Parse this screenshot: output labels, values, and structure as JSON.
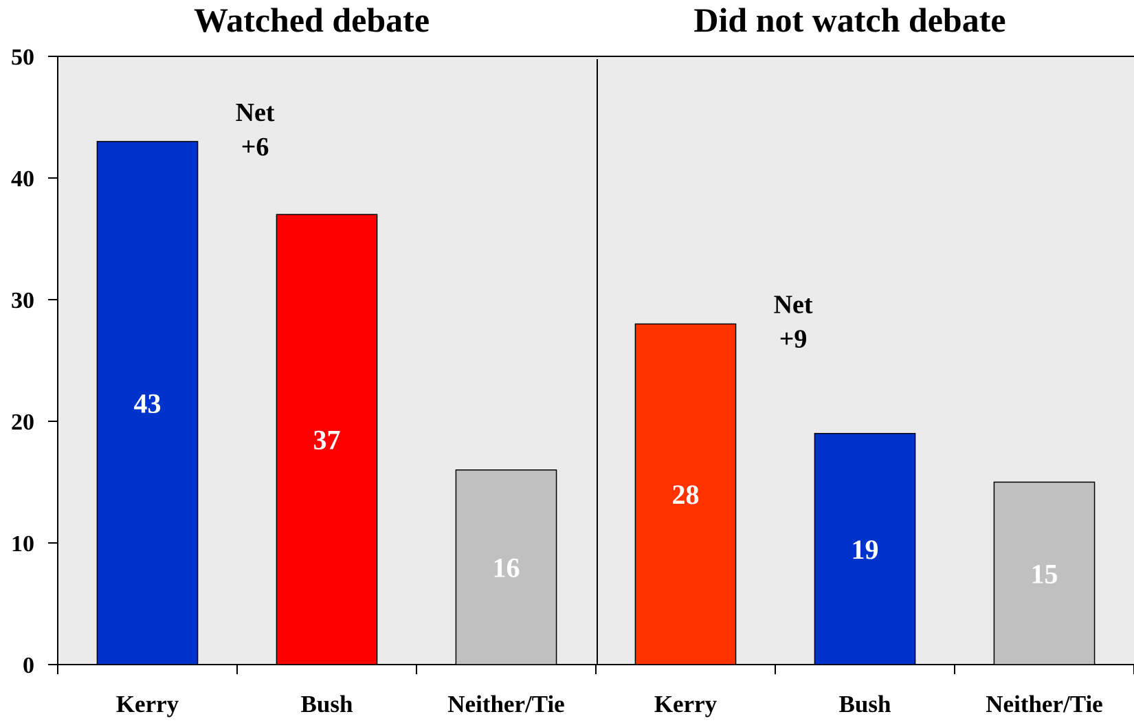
{
  "chart_data": {
    "type": "bar",
    "ylim": [
      0,
      50
    ],
    "yticks": [
      "0",
      "10",
      "20",
      "30",
      "40",
      "50"
    ],
    "grid": false,
    "background_color": "#ebebeb",
    "panels": [
      {
        "title": "Watched debate",
        "categories": [
          "Kerry",
          "Bush",
          "Neither/Tie"
        ],
        "values": [
          43,
          37,
          16
        ],
        "value_labels": [
          "43",
          "37",
          "16"
        ],
        "colors": [
          "#0033cc",
          "#ff0000",
          "#c0c0c0"
        ],
        "annotation": [
          "Net",
          "+6"
        ]
      },
      {
        "title": "Did not watch debate",
        "categories": [
          "Kerry",
          "Bush",
          "Neither/Tie"
        ],
        "values": [
          28,
          19,
          15
        ],
        "value_labels": [
          "28",
          "19",
          "15"
        ],
        "colors": [
          "#ff3300",
          "#0033cc",
          "#c0c0c0"
        ],
        "annotation": [
          "Net",
          "+9"
        ]
      }
    ]
  }
}
